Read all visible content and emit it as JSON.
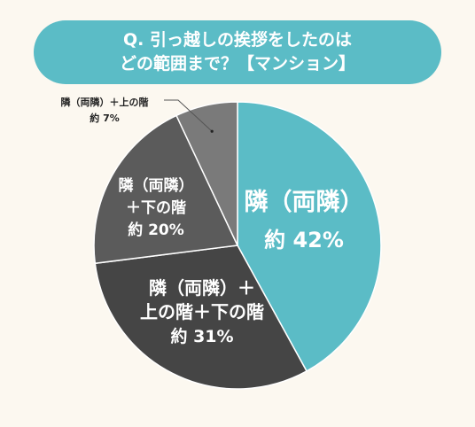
{
  "title_lines": [
    "Q. 引っ越しの挨拶をしたのは",
    "どの範囲まで？【マンション】"
  ],
  "colors": {
    "background": "#fcf8f0",
    "title_bg": "#5bbcc6",
    "title_text": "#ffffff",
    "slice_label_light": "#ffffff",
    "slice_label_dark": "#222222",
    "slices": [
      "#5bbcc6",
      "#454545",
      "#5b5b5b",
      "#7a7a7a"
    ],
    "leader_line": "#555555"
  },
  "chart_data": {
    "type": "pie",
    "start_angle_deg": 0,
    "direction": "clockwise",
    "slices": [
      {
        "label_lines": [
          "隣（両隣）"
        ],
        "value_text": "約 42%",
        "value": 42
      },
      {
        "label_lines": [
          "隣（両隣）＋",
          "上の階＋下の階"
        ],
        "value_text": "約 31%",
        "value": 31
      },
      {
        "label_lines": [
          "隣（両隣）",
          "＋下の階"
        ],
        "value_text": "約 20%",
        "value": 20
      },
      {
        "label_lines": [
          "隣（両隣）＋上の階"
        ],
        "value_text": "約 7%",
        "value": 7
      }
    ]
  }
}
